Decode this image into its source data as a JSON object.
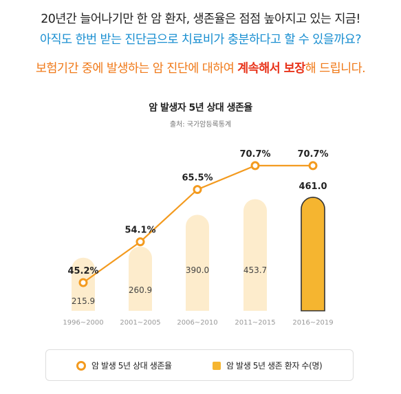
{
  "header": {
    "line1": "20년간 늘어나기만 한 암 환자, 생존율은 점점 높아지고 있는 지금!",
    "line2": "아직도 한번 받는 진단금으로 치료비가 충분하다고 할 수 있을까요?",
    "line3_prefix": "보험기간 중에 발생하는 암 진단에 대하여 ",
    "line3_emphasis": "계속해서 보장",
    "line3_suffix": "해 드립니다."
  },
  "colors": {
    "line": "#f39a1e",
    "bar_pale": "#fdeccc",
    "bar_highlight": "#f5b530",
    "bar_highlight_border": "#333333"
  },
  "chart_data": {
    "type": "bar",
    "title": "암 발생자 5년 상대 생존율",
    "subtitle": "출처: 국가암등록통계",
    "categories": [
      "1996~2000",
      "2001~2005",
      "2006~2010",
      "2011~2015",
      "2016~2019"
    ],
    "series": [
      {
        "name": "암 발생 5년 상대 생존율",
        "type": "line",
        "values": [
          45.2,
          54.1,
          65.5,
          70.7,
          70.7
        ],
        "labels": [
          "45.2%",
          "54.1%",
          "65.5%",
          "70.7%",
          "70.7%"
        ]
      },
      {
        "name": "암 발생 5년 생존 환자 수(명)",
        "type": "bar",
        "values": [
          215.9,
          260.9,
          390.0,
          453.7,
          461.0
        ],
        "labels": [
          "215.9",
          "260.9",
          "390.0",
          "453.7",
          "461.0"
        ]
      }
    ],
    "highlight_index": 4,
    "grid": false,
    "legend_position": "bottom"
  }
}
